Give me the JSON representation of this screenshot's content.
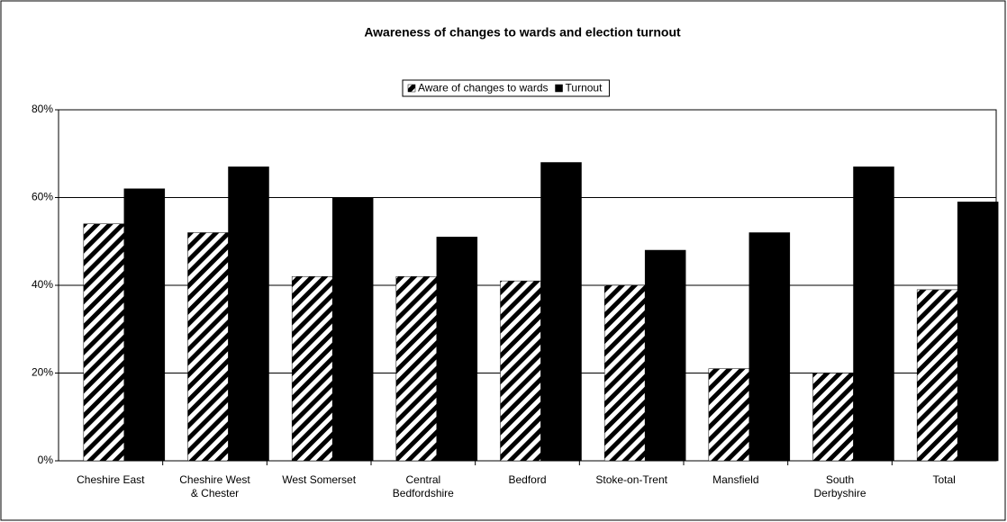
{
  "chart_data": {
    "type": "bar",
    "title": "Awareness of changes to wards and election turnout",
    "categories": [
      "Cheshire East",
      "Cheshire West\n& Chester",
      "West Somerset",
      "Central\nBedfordshire",
      "Bedford",
      "Stoke-on-Trent",
      "Mansfield",
      "South\nDerbyshire",
      "Total"
    ],
    "series": [
      {
        "name": "Aware of changes to wards",
        "color": "hatched",
        "values": [
          54,
          52,
          42,
          42,
          41,
          40,
          21,
          20,
          39
        ]
      },
      {
        "name": "Turnout",
        "color": "#000000",
        "values": [
          62,
          67,
          60,
          51,
          68,
          48,
          52,
          67,
          59
        ]
      }
    ],
    "ylim": [
      0,
      80
    ],
    "yticks": [
      {
        "value": 0,
        "label": "0%"
      },
      {
        "value": 20,
        "label": "20%"
      },
      {
        "value": 40,
        "label": "40%"
      },
      {
        "value": 60,
        "label": "60%"
      },
      {
        "value": 80,
        "label": "80%"
      }
    ],
    "grid": true,
    "legend": "top"
  }
}
